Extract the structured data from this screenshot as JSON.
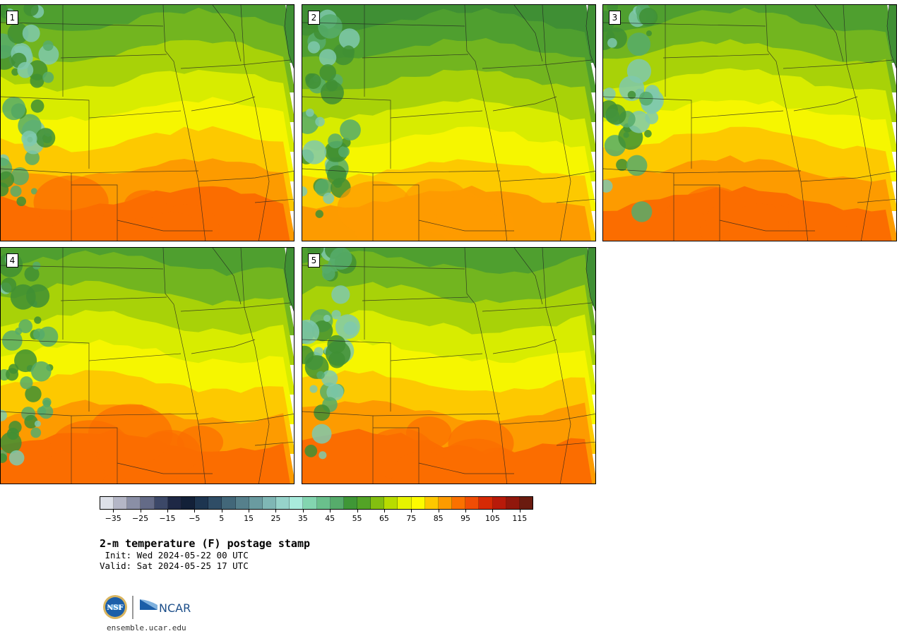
{
  "panels": [
    {
      "label": "1",
      "palette": [
        "#4f9f2f",
        "#72b51f",
        "#a8d208",
        "#d8ec00",
        "#f6f600",
        "#fdc900",
        "#fd9b00",
        "#fb6d00"
      ]
    },
    {
      "label": "2",
      "palette": [
        "#3f8f34",
        "#4f9f2f",
        "#72b51f",
        "#a8d208",
        "#d8ec00",
        "#f6f600",
        "#fdc900",
        "#fd9b00"
      ]
    },
    {
      "label": "3",
      "palette": [
        "#4f9f2f",
        "#72b51f",
        "#a8d208",
        "#d8ec00",
        "#f6f600",
        "#fdc900",
        "#fd9b00",
        "#fb6d00"
      ]
    },
    {
      "label": "4",
      "palette": [
        "#4f9f2f",
        "#72b51f",
        "#a8d208",
        "#d8ec00",
        "#f6f600",
        "#fdc900",
        "#fd9b00",
        "#fb6d00"
      ]
    },
    {
      "label": "5",
      "palette": [
        "#4f9f2f",
        "#72b51f",
        "#a8d208",
        "#d8ec00",
        "#f6f600",
        "#fdc900",
        "#fd9b00",
        "#fb6d00"
      ]
    }
  ],
  "colorbar": {
    "colors": [
      "#dde0e8",
      "#b4b6c6",
      "#8a8fa6",
      "#646b87",
      "#3c4868",
      "#1e2845",
      "#122038",
      "#1d3550",
      "#2f4d66",
      "#426779",
      "#56808c",
      "#6a9ba0",
      "#7fb7b5",
      "#96d3ca",
      "#a9ebdc",
      "#83d5b0",
      "#6ac08c",
      "#56ac6b",
      "#3f9736",
      "#53a426",
      "#83bf10",
      "#b8dc00",
      "#e6f300",
      "#fdfc00",
      "#fdc800",
      "#fd9b00",
      "#fb7100",
      "#f04d05",
      "#d62a05",
      "#b81a0a",
      "#91170c",
      "#6a1b0f"
    ],
    "tick_labels": [
      "−35",
      "−25",
      "−15",
      "−5",
      "5",
      "15",
      "25",
      "35",
      "45",
      "55",
      "65",
      "75",
      "85",
      "95",
      "105",
      "115"
    ],
    "range": [
      -40,
      120
    ]
  },
  "title": "2-m temperature (F) postage stamp",
  "init_line": " Init: Wed 2024-05-22 00 UTC",
  "valid_line": "Valid: Sat 2024-05-25 17 UTC",
  "logos": {
    "nsf": "NSF",
    "ncar": "NCAR"
  },
  "url": "ensemble.ucar.edu"
}
